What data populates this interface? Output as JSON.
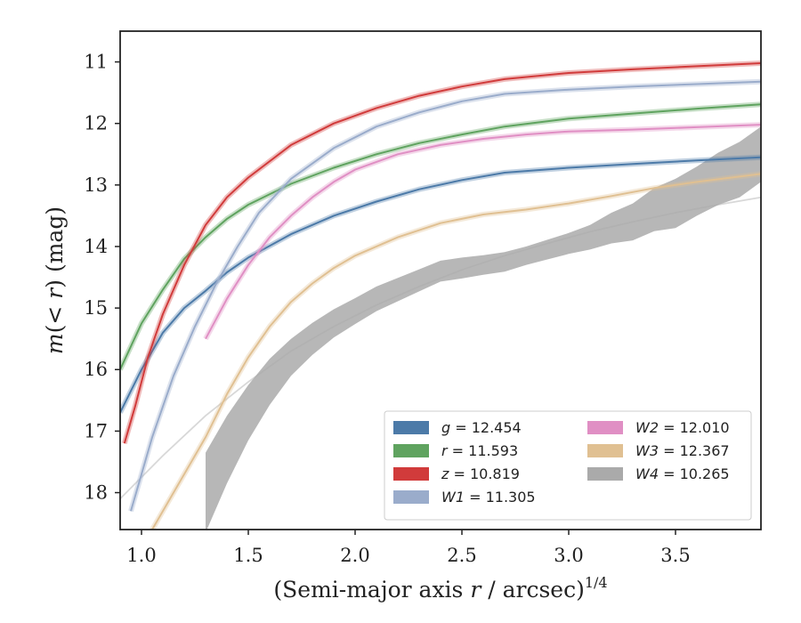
{
  "chart_data": {
    "type": "line",
    "xlabel_main": "(Semi-major axis ",
    "xlabel_var": "r",
    "xlabel_tail": " / arcsec)",
    "xlabel_power": "1/4",
    "ylabel_m": "m",
    "ylabel_mid": "(< ",
    "ylabel_r": "r",
    "ylabel_tail": ") (mag)",
    "xlim": [
      0.9,
      3.9
    ],
    "ylim": [
      18.6,
      10.5
    ],
    "y_inverted": true,
    "xticks": [
      1.0,
      1.5,
      2.0,
      2.5,
      3.0,
      3.5
    ],
    "xtick_labels": [
      "1.0",
      "1.5",
      "2.0",
      "2.5",
      "3.0",
      "3.5"
    ],
    "yticks": [
      11,
      12,
      13,
      14,
      15,
      16,
      17,
      18
    ],
    "ytick_labels": [
      "11",
      "12",
      "13",
      "14",
      "15",
      "16",
      "17",
      "18"
    ],
    "grid": false,
    "legend_position": "lower-right",
    "series": [
      {
        "band": "g",
        "value": "12.454",
        "color": "#4c7aa8",
        "x": [
          0.9,
          1.0,
          1.1,
          1.2,
          1.3,
          1.4,
          1.5,
          1.7,
          1.9,
          2.1,
          2.3,
          2.5,
          2.7,
          3.0,
          3.3,
          3.6,
          3.9
        ],
        "y": [
          16.7,
          16.0,
          15.4,
          15.0,
          14.72,
          14.42,
          14.18,
          13.8,
          13.5,
          13.27,
          13.07,
          12.92,
          12.8,
          12.72,
          12.66,
          12.6,
          12.55
        ]
      },
      {
        "band": "r",
        "value": "11.593",
        "color": "#5fa35f",
        "x": [
          0.9,
          1.0,
          1.1,
          1.2,
          1.3,
          1.4,
          1.5,
          1.7,
          1.9,
          2.1,
          2.3,
          2.5,
          2.7,
          3.0,
          3.3,
          3.6,
          3.9
        ],
        "y": [
          16.0,
          15.25,
          14.7,
          14.2,
          13.85,
          13.55,
          13.32,
          12.98,
          12.72,
          12.5,
          12.32,
          12.18,
          12.05,
          11.92,
          11.84,
          11.76,
          11.69
        ]
      },
      {
        "band": "z",
        "value": "10.819",
        "color": "#d13b3b",
        "x": [
          0.92,
          0.97,
          1.03,
          1.1,
          1.2,
          1.3,
          1.4,
          1.5,
          1.7,
          1.9,
          2.1,
          2.3,
          2.5,
          2.7,
          3.0,
          3.3,
          3.6,
          3.9
        ],
        "y": [
          17.2,
          16.6,
          15.8,
          15.1,
          14.3,
          13.65,
          13.2,
          12.88,
          12.35,
          12.0,
          11.75,
          11.55,
          11.4,
          11.28,
          11.18,
          11.12,
          11.07,
          11.02
        ]
      },
      {
        "band": "W1",
        "value": "11.305",
        "color": "#9aaccb",
        "x": [
          0.95,
          1.05,
          1.15,
          1.25,
          1.35,
          1.45,
          1.55,
          1.7,
          1.9,
          2.1,
          2.3,
          2.5,
          2.7,
          3.0,
          3.3,
          3.6,
          3.9
        ],
        "y": [
          18.3,
          17.1,
          16.1,
          15.3,
          14.6,
          14.0,
          13.45,
          12.9,
          12.4,
          12.05,
          11.82,
          11.64,
          11.52,
          11.45,
          11.4,
          11.36,
          11.32
        ]
      },
      {
        "band": "W2",
        "value": "12.010",
        "color": "#e08fc4",
        "x": [
          1.3,
          1.4,
          1.5,
          1.6,
          1.7,
          1.8,
          1.9,
          2.0,
          2.2,
          2.4,
          2.6,
          2.8,
          3.0,
          3.3,
          3.6,
          3.9
        ],
        "y": [
          15.5,
          14.85,
          14.3,
          13.85,
          13.5,
          13.2,
          12.95,
          12.75,
          12.5,
          12.35,
          12.25,
          12.18,
          12.13,
          12.1,
          12.06,
          12.02
        ]
      },
      {
        "band": "W3",
        "value": "12.367",
        "color": "#e0c092",
        "x": [
          1.05,
          1.15,
          1.3,
          1.4,
          1.5,
          1.6,
          1.7,
          1.8,
          1.9,
          2.0,
          2.2,
          2.4,
          2.6,
          2.8,
          3.0,
          3.2,
          3.4,
          3.6,
          3.9
        ],
        "y": [
          18.6,
          18.0,
          17.1,
          16.4,
          15.8,
          15.3,
          14.9,
          14.6,
          14.35,
          14.15,
          13.85,
          13.62,
          13.48,
          13.4,
          13.3,
          13.18,
          13.05,
          12.95,
          12.82
        ]
      },
      {
        "band": "W4",
        "value": "10.265",
        "color": "#aaaaaa",
        "x": [
          1.3,
          1.4,
          1.5,
          1.6,
          1.7,
          1.8,
          1.9,
          2.0,
          2.1,
          2.2,
          2.3,
          2.4,
          2.5,
          2.6,
          2.7,
          2.8,
          2.9,
          3.0,
          3.1,
          3.2,
          3.3,
          3.4,
          3.5,
          3.6,
          3.7,
          3.8,
          3.9
        ],
        "y": [
          18.0,
          17.3,
          16.7,
          16.2,
          15.8,
          15.5,
          15.25,
          15.05,
          14.85,
          14.7,
          14.55,
          14.4,
          14.35,
          14.3,
          14.25,
          14.15,
          14.05,
          13.95,
          13.85,
          13.7,
          13.6,
          13.4,
          13.3,
          13.1,
          12.9,
          12.75,
          12.5
        ],
        "band_width": [
          1.3,
          1.1,
          0.9,
          0.75,
          0.6,
          0.52,
          0.46,
          0.42,
          0.4,
          0.38,
          0.36,
          0.34,
          0.34,
          0.32,
          0.32,
          0.3,
          0.32,
          0.34,
          0.4,
          0.5,
          0.6,
          0.7,
          0.8,
          0.8,
          0.85,
          0.9,
          0.9
        ]
      }
    ],
    "thin_curves": [
      {
        "color": "#d8d8d8",
        "x": [
          0.9,
          1.1,
          1.3,
          1.5,
          1.7,
          1.9,
          2.1,
          2.3,
          2.5,
          2.7,
          2.9,
          3.1,
          3.3,
          3.5,
          3.7,
          3.9
        ],
        "y": [
          18.1,
          17.4,
          16.75,
          16.2,
          15.7,
          15.3,
          14.95,
          14.65,
          14.38,
          14.15,
          13.95,
          13.76,
          13.6,
          13.45,
          13.32,
          13.2
        ]
      }
    ]
  },
  "legend": {
    "items": [
      {
        "sym": "g",
        "eq": " = 12.454",
        "color": "#4c7aa8"
      },
      {
        "sym": "r",
        "eq": " = 11.593",
        "color": "#5fa35f"
      },
      {
        "sym": "z",
        "eq": " = 10.819",
        "color": "#d13b3b"
      },
      {
        "sym": "W1",
        "eq": " = 11.305",
        "color": "#9aaccb"
      },
      {
        "sym": "W2",
        "eq": " = 12.010",
        "color": "#e08fc4"
      },
      {
        "sym": "W3",
        "eq": " = 12.367",
        "color": "#e0c092"
      },
      {
        "sym": "W4",
        "eq": " = 10.265",
        "color": "#aaaaaa"
      }
    ]
  }
}
